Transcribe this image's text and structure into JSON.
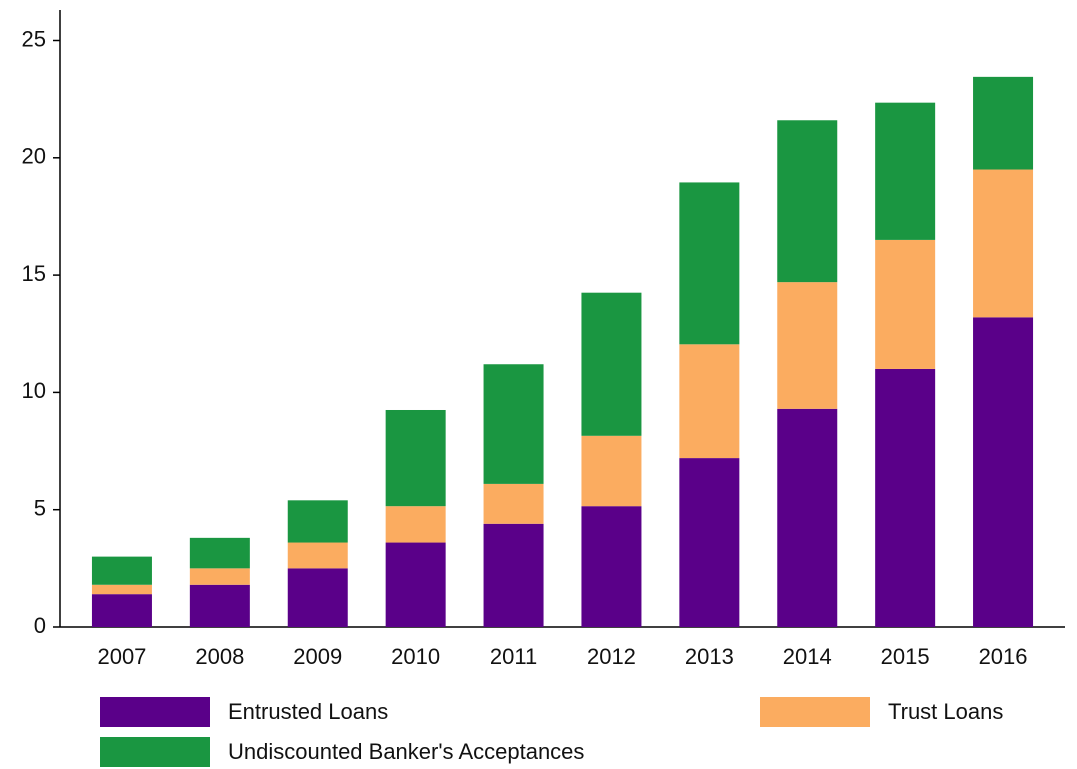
{
  "chart_data": {
    "type": "stacked_bar",
    "categories": [
      "2007",
      "2008",
      "2009",
      "2010",
      "2011",
      "2012",
      "2013",
      "2014",
      "2015",
      "2016"
    ],
    "series": [
      {
        "name": "Entrusted Loans",
        "color": "#5a0089",
        "values": [
          1.4,
          1.8,
          2.5,
          3.6,
          4.4,
          5.15,
          7.2,
          9.3,
          11.0,
          13.2
        ]
      },
      {
        "name": "Trust Loans",
        "color": "#fbac60",
        "values": [
          0.4,
          0.7,
          1.1,
          1.55,
          1.7,
          3.0,
          4.85,
          5.4,
          5.5,
          6.3
        ]
      },
      {
        "name": "Undiscounted Banker's Acceptances",
        "color": "#1a9641",
        "values": [
          1.2,
          1.3,
          1.8,
          4.1,
          5.1,
          6.1,
          6.9,
          6.9,
          5.85,
          3.95
        ]
      }
    ],
    "ylim": [
      0,
      26.3
    ],
    "yticks": [
      0,
      5,
      10,
      15,
      20,
      25
    ],
    "grid": false,
    "legend": "bottom"
  }
}
